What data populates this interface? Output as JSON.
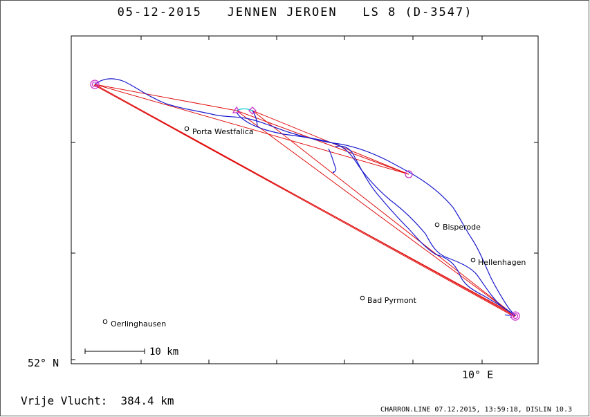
{
  "title": "05-12-2015   JENNEN JEROEN   LS 8 (D-3547)",
  "axes": {
    "lat_label": "52° N",
    "lon_label": "10° E"
  },
  "scale_bar": {
    "label": "10 km",
    "length_km": 10
  },
  "towns": [
    {
      "name": "Porta Westfalica"
    },
    {
      "name": "Bisperode"
    },
    {
      "name": "Hellenhagen"
    },
    {
      "name": "Bad Pyrmont"
    },
    {
      "name": "Oerlinghausen"
    }
  ],
  "flight": {
    "distance_text": "Vrije Vlucht:  384.4 km"
  },
  "footer": "CHARRON.LINE 07.12.2015, 13:59:18, DISLIN 10.3",
  "colors": {
    "track": "#1a1acd",
    "task_lines": "#e01010",
    "turnpoints": "#cc33cc",
    "track_segment": "#00cccc"
  }
}
